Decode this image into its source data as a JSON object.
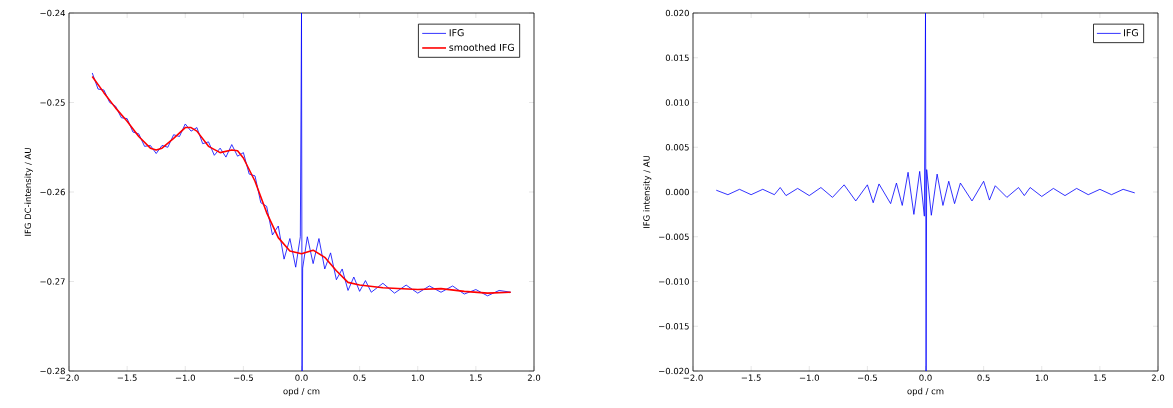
{
  "chart_data": [
    {
      "type": "line",
      "xlabel": "opd / cm",
      "ylabel": "IFG DC-intensity / AU",
      "legend": "top right",
      "grid": false,
      "xlim": [
        -2.0,
        2.0
      ],
      "ylim": [
        -0.28,
        -0.24
      ],
      "xticks": [
        {
          "value": -2.0,
          "label": "−2.0"
        },
        {
          "value": -1.5,
          "label": "−1.5"
        },
        {
          "value": -1.0,
          "label": "−1.0"
        },
        {
          "value": -0.5,
          "label": "−0.5"
        },
        {
          "value": 0.0,
          "label": "0.0"
        },
        {
          "value": 0.5,
          "label": "0.5"
        },
        {
          "value": 1.0,
          "label": "1.0"
        },
        {
          "value": 1.5,
          "label": "1.5"
        },
        {
          "value": 2.0,
          "label": "2.0"
        }
      ],
      "yticks": [
        {
          "value": -0.28,
          "label": "−0.28"
        },
        {
          "value": -0.27,
          "label": "−0.27"
        },
        {
          "value": -0.26,
          "label": "−0.26"
        },
        {
          "value": -0.25,
          "label": "−0.25"
        },
        {
          "value": -0.24,
          "label": "−0.24"
        }
      ],
      "series": [
        {
          "name": "IFG",
          "color": "#0000ff",
          "x": [
            -1.8,
            -1.75,
            -1.7,
            -1.65,
            -1.6,
            -1.55,
            -1.5,
            -1.45,
            -1.4,
            -1.35,
            -1.3,
            -1.25,
            -1.2,
            -1.15,
            -1.1,
            -1.05,
            -1.0,
            -0.95,
            -0.9,
            -0.85,
            -0.8,
            -0.75,
            -0.7,
            -0.65,
            -0.6,
            -0.55,
            -0.5,
            -0.45,
            -0.4,
            -0.35,
            -0.3,
            -0.25,
            -0.2,
            -0.15,
            -0.1,
            -0.05,
            -0.01,
            0.0,
            0.005,
            0.01,
            0.05,
            0.1,
            0.15,
            0.2,
            0.25,
            0.3,
            0.35,
            0.4,
            0.45,
            0.5,
            0.55,
            0.6,
            0.7,
            0.8,
            0.9,
            1.0,
            1.1,
            1.2,
            1.3,
            1.4,
            1.5,
            1.6,
            1.7,
            1.8
          ],
          "values": [
            -0.2467,
            -0.2485,
            -0.2486,
            -0.25,
            -0.2504,
            -0.2517,
            -0.2518,
            -0.2533,
            -0.2535,
            -0.2549,
            -0.2548,
            -0.2557,
            -0.2548,
            -0.255,
            -0.2536,
            -0.2538,
            -0.2524,
            -0.2532,
            -0.2528,
            -0.2546,
            -0.2544,
            -0.2559,
            -0.2551,
            -0.2561,
            -0.2547,
            -0.256,
            -0.2556,
            -0.258,
            -0.2582,
            -0.2612,
            -0.2616,
            -0.2648,
            -0.2638,
            -0.2675,
            -0.2652,
            -0.2684,
            -0.265,
            -0.24,
            -0.28,
            -0.2685,
            -0.265,
            -0.268,
            -0.2652,
            -0.2686,
            -0.2668,
            -0.2698,
            -0.2686,
            -0.271,
            -0.2695,
            -0.2711,
            -0.2699,
            -0.2712,
            -0.2702,
            -0.2713,
            -0.2704,
            -0.2713,
            -0.2705,
            -0.2712,
            -0.2705,
            -0.2714,
            -0.2709,
            -0.2716,
            -0.271,
            -0.2712
          ]
        },
        {
          "name": "smoothed IFG",
          "color": "#ff0000",
          "x": [
            -1.8,
            -1.7,
            -1.6,
            -1.5,
            -1.4,
            -1.3,
            -1.25,
            -1.2,
            -1.1,
            -1.0,
            -0.95,
            -0.9,
            -0.8,
            -0.7,
            -0.6,
            -0.55,
            -0.5,
            -0.4,
            -0.3,
            -0.2,
            -0.1,
            0.0,
            0.1,
            0.2,
            0.3,
            0.4,
            0.5,
            0.7,
            1.0,
            1.2,
            1.4,
            1.6,
            1.8
          ],
          "values": [
            -0.2471,
            -0.2489,
            -0.2506,
            -0.2521,
            -0.2538,
            -0.2551,
            -0.2553,
            -0.2551,
            -0.254,
            -0.2528,
            -0.2528,
            -0.2532,
            -0.2549,
            -0.2556,
            -0.2553,
            -0.2554,
            -0.2562,
            -0.2588,
            -0.2623,
            -0.2651,
            -0.2666,
            -0.2669,
            -0.2665,
            -0.2673,
            -0.2688,
            -0.2701,
            -0.2704,
            -0.2707,
            -0.2709,
            -0.2708,
            -0.2711,
            -0.2713,
            -0.2712
          ]
        }
      ]
    },
    {
      "type": "line",
      "xlabel": "opd / cm",
      "ylabel": "IFG intensity / AU",
      "legend": "top right",
      "grid": false,
      "xlim": [
        -2.0,
        2.0
      ],
      "ylim": [
        -0.02,
        0.02
      ],
      "xticks": [
        {
          "value": -2.0,
          "label": "−2.0"
        },
        {
          "value": -1.5,
          "label": "−1.5"
        },
        {
          "value": -1.0,
          "label": "−1.0"
        },
        {
          "value": -0.5,
          "label": "−0.5"
        },
        {
          "value": 0.0,
          "label": "0.0"
        },
        {
          "value": 0.5,
          "label": "0.5"
        },
        {
          "value": 1.0,
          "label": "1.0"
        },
        {
          "value": 1.5,
          "label": "1.5"
        },
        {
          "value": 2.0,
          "label": "2.0"
        }
      ],
      "yticks": [
        {
          "value": -0.02,
          "label": "−0.020"
        },
        {
          "value": -0.015,
          "label": "−0.015"
        },
        {
          "value": -0.01,
          "label": "−0.010"
        },
        {
          "value": -0.005,
          "label": "−0.005"
        },
        {
          "value": 0.0,
          "label": "0.000"
        },
        {
          "value": 0.005,
          "label": "0.005"
        },
        {
          "value": 0.01,
          "label": "0.010"
        },
        {
          "value": 0.015,
          "label": "0.015"
        },
        {
          "value": 0.02,
          "label": "0.020"
        }
      ],
      "series": [
        {
          "name": "IFG",
          "color": "#0000ff",
          "x": [
            -1.8,
            -1.7,
            -1.6,
            -1.5,
            -1.4,
            -1.3,
            -1.25,
            -1.2,
            -1.1,
            -1.0,
            -0.9,
            -0.8,
            -0.7,
            -0.6,
            -0.5,
            -0.45,
            -0.4,
            -0.3,
            -0.25,
            -0.2,
            -0.15,
            -0.1,
            -0.05,
            -0.01,
            0.0,
            0.005,
            0.01,
            0.05,
            0.1,
            0.15,
            0.2,
            0.25,
            0.3,
            0.4,
            0.5,
            0.55,
            0.6,
            0.7,
            0.8,
            0.85,
            0.9,
            1.0,
            1.1,
            1.2,
            1.3,
            1.4,
            1.5,
            1.6,
            1.7,
            1.8
          ],
          "values": [
            0.0002,
            -0.0003,
            0.0003,
            -0.0003,
            0.0003,
            -0.0003,
            0.0005,
            -0.0004,
            0.0004,
            -0.0004,
            0.0005,
            -0.0006,
            0.0008,
            -0.001,
            0.0008,
            -0.0012,
            0.0009,
            -0.0013,
            0.001,
            -0.0015,
            0.0022,
            -0.0025,
            0.0023,
            -0.0027,
            0.02,
            -0.02,
            0.0025,
            -0.0026,
            0.002,
            -0.0015,
            0.0012,
            -0.0013,
            0.001,
            -0.001,
            0.0012,
            -0.0009,
            0.0007,
            -0.0006,
            0.0005,
            -0.0004,
            0.0005,
            -0.0005,
            0.0004,
            -0.0004,
            0.0004,
            -0.0003,
            0.0003,
            -0.0003,
            0.0003,
            -0.0001
          ]
        }
      ]
    }
  ]
}
